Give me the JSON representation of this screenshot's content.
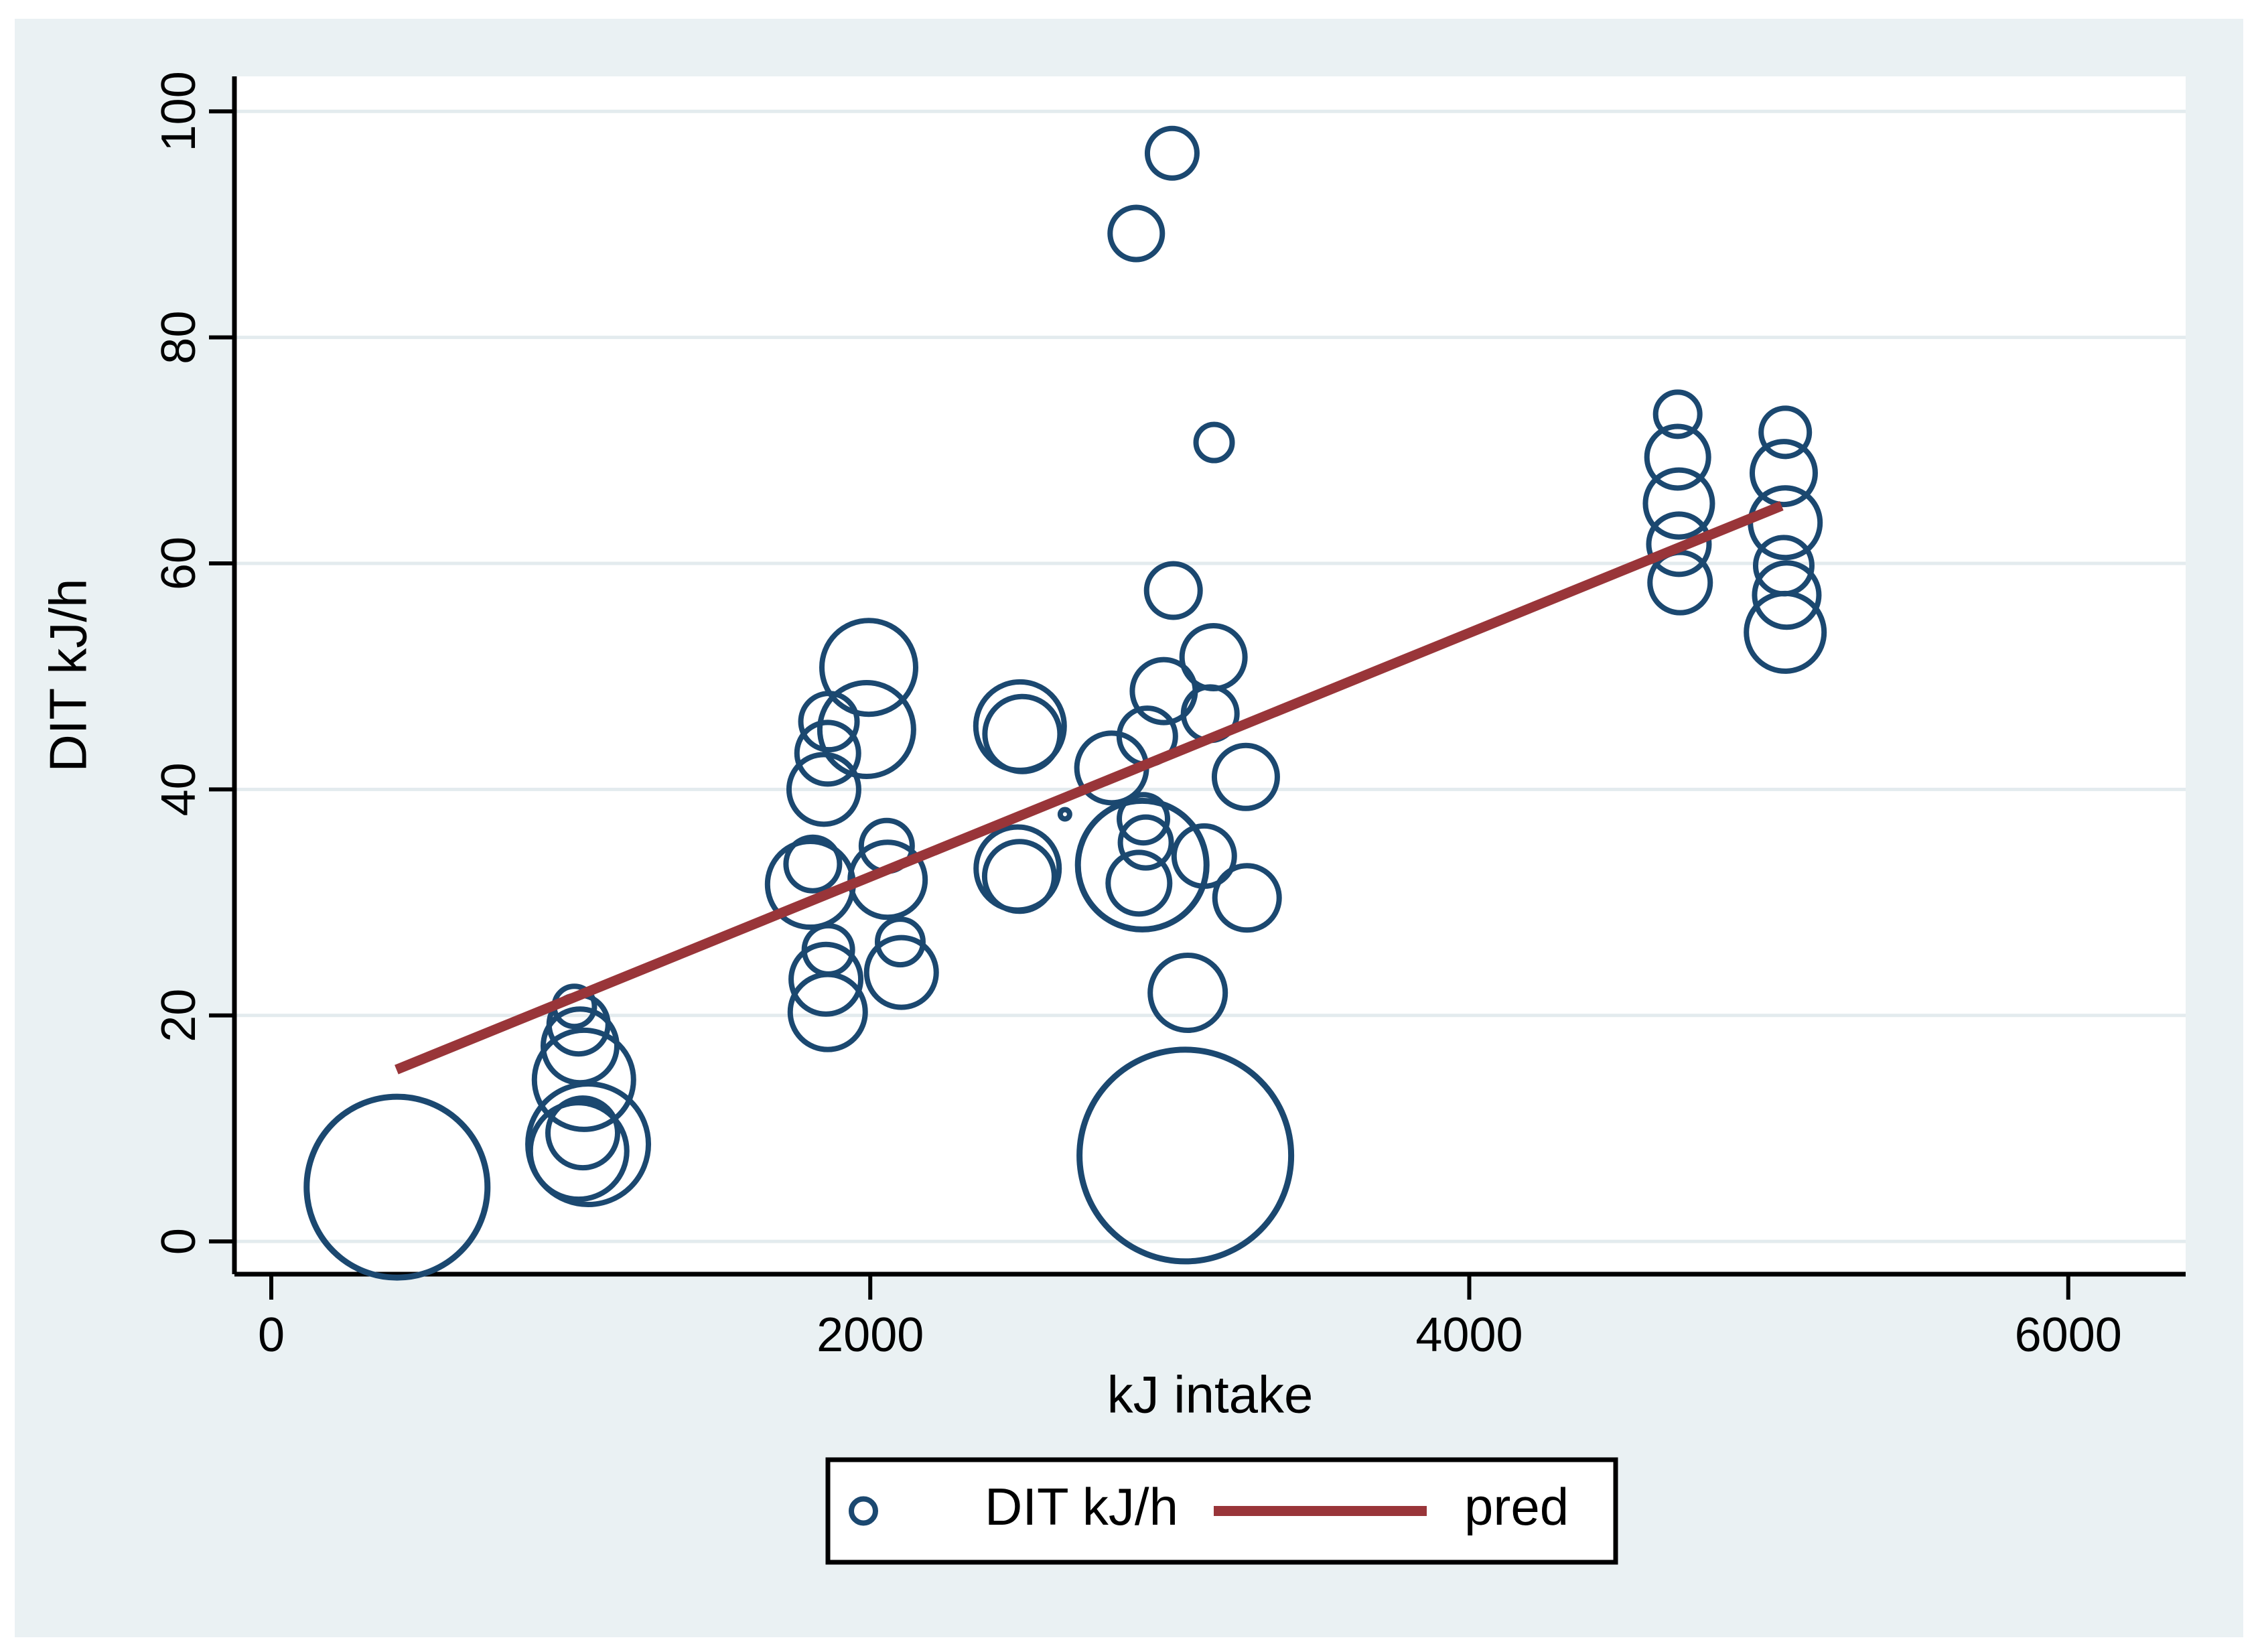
{
  "figure": {
    "background_color": "#eaf1f3",
    "plot_background_color": "#ffffff",
    "gridline_color": "#e3ebee",
    "axis_color": "#000000",
    "marker_color": "#1b4870",
    "line_color": "#993539"
  },
  "chart_data": {
    "type": "scatter",
    "subtype": "bubble",
    "title": "",
    "xlabel": "kJ intake",
    "ylabel": "DIT kJ/h",
    "xlim": [
      -123,
      6392
    ],
    "ylim": [
      -2.9,
      103.1
    ],
    "xticks": [
      0,
      2000,
      4000,
      6000
    ],
    "yticks": [
      0,
      20,
      40,
      60,
      80,
      100
    ],
    "grid": "horizontal",
    "legend_position": "bottom-center",
    "series": [
      {
        "name": "DIT kJ/h",
        "type": "bubble",
        "color": "#1b4870",
        "marker": "circle",
        "note": "points are [kJ_intake, DIT_kJ_per_h, bubble_radius_px]; radius is frequency-weight marker size in px of the 3371px-wide canvas",
        "points": [
          [
            420,
            4.8,
            135
          ],
          [
            1012,
            20.8,
            30
          ],
          [
            1026,
            19.2,
            44
          ],
          [
            1031,
            17.3,
            55
          ],
          [
            1044,
            14.3,
            74
          ],
          [
            1040,
            9.6,
            52
          ],
          [
            1058,
            8.6,
            90
          ],
          [
            1026,
            8.0,
            72
          ],
          [
            1995,
            50.8,
            70
          ],
          [
            1988,
            45.3,
            70
          ],
          [
            1862,
            46.0,
            42
          ],
          [
            1858,
            43.2,
            46
          ],
          [
            1845,
            40.0,
            52
          ],
          [
            1800,
            31.6,
            64
          ],
          [
            1808,
            33.4,
            40
          ],
          [
            1860,
            25.8,
            36
          ],
          [
            1852,
            23.2,
            52
          ],
          [
            1858,
            20.3,
            56
          ],
          [
            2055,
            35.0,
            38
          ],
          [
            2058,
            32.0,
            56
          ],
          [
            2100,
            26.5,
            34
          ],
          [
            2104,
            23.8,
            52
          ],
          [
            2500,
            45.6,
            66
          ],
          [
            2508,
            44.9,
            56
          ],
          [
            2492,
            33.0,
            62
          ],
          [
            2498,
            32.3,
            52
          ],
          [
            2650,
            37.8,
            7
          ],
          [
            3008,
            96.3,
            37
          ],
          [
            2888,
            89.2,
            39
          ],
          [
            3148,
            70.7,
            27
          ],
          [
            3012,
            57.6,
            40
          ],
          [
            3146,
            51.7,
            47
          ],
          [
            2980,
            48.7,
            47
          ],
          [
            3135,
            46.7,
            40
          ],
          [
            2925,
            44.7,
            42
          ],
          [
            2806,
            41.9,
            52
          ],
          [
            3254,
            41.1,
            47
          ],
          [
            2912,
            37.4,
            36
          ],
          [
            2920,
            35.3,
            38
          ],
          [
            2908,
            33.3,
            96
          ],
          [
            2897,
            31.7,
            46
          ],
          [
            3115,
            34.1,
            45
          ],
          [
            3258,
            30.4,
            48
          ],
          [
            3060,
            22.0,
            56
          ],
          [
            3052,
            7.6,
            158
          ],
          [
            4696,
            73.2,
            33
          ],
          [
            4696,
            69.4,
            46
          ],
          [
            4700,
            65.3,
            50
          ],
          [
            4700,
            61.7,
            45
          ],
          [
            4704,
            58.3,
            45
          ],
          [
            5055,
            71.6,
            36
          ],
          [
            5050,
            68.0,
            47
          ],
          [
            5055,
            63.6,
            52
          ],
          [
            5050,
            59.8,
            42
          ],
          [
            5060,
            57.2,
            48
          ],
          [
            5055,
            53.9,
            58
          ]
        ]
      },
      {
        "name": "pred",
        "type": "line",
        "color": "#993539",
        "points": [
          [
            418,
            15.2
          ],
          [
            5043,
            65.1
          ]
        ]
      }
    ],
    "legend": {
      "entries": [
        {
          "marker": "circle",
          "label": "DIT kJ/h"
        },
        {
          "marker": "line",
          "label": "pred"
        }
      ]
    }
  }
}
